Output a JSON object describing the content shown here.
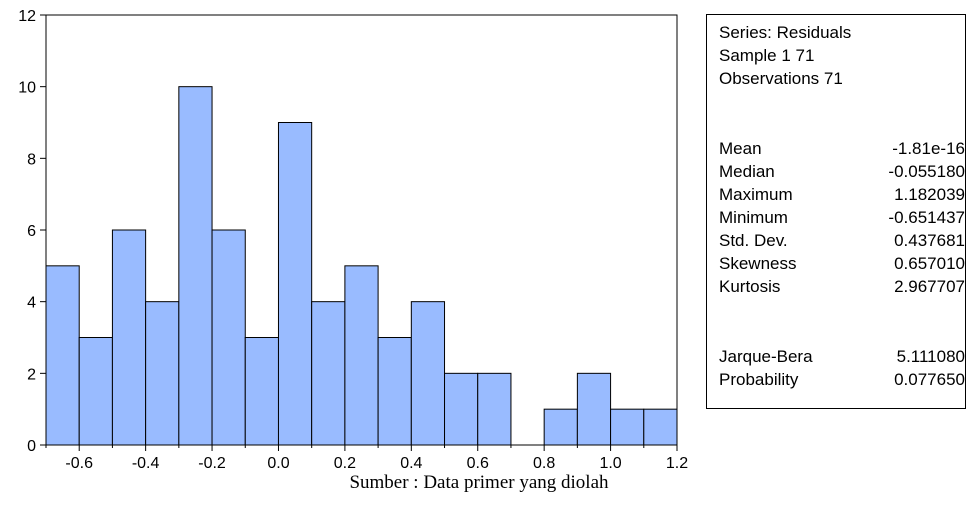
{
  "chart_data": {
    "type": "bar",
    "bin_edges": [
      -0.7,
      -0.6,
      -0.5,
      -0.4,
      -0.3,
      -0.2,
      -0.1,
      0.0,
      0.1,
      0.2,
      0.3,
      0.4,
      0.5,
      0.6,
      0.7,
      0.8,
      0.9,
      1.0,
      1.1,
      1.2
    ],
    "values": [
      5,
      3,
      6,
      4,
      10,
      6,
      3,
      9,
      4,
      5,
      3,
      4,
      2,
      2,
      0,
      1,
      2,
      1,
      1
    ],
    "xlim": [
      -0.7,
      1.2
    ],
    "ylim": [
      0,
      12
    ],
    "x_ticks": [
      -0.6,
      -0.4,
      -0.2,
      0.0,
      0.2,
      0.4,
      0.6,
      0.8,
      1.0,
      1.2
    ],
    "x_tick_labels": [
      "-0.6",
      "-0.4",
      "-0.2",
      "0.0",
      "0.2",
      "0.4",
      "0.6",
      "0.8",
      "1.0",
      "1.2"
    ],
    "y_ticks": [
      0,
      2,
      4,
      6,
      8,
      10,
      12
    ],
    "y_tick_labels": [
      "0",
      "2",
      "4",
      "6",
      "8",
      "10",
      "12"
    ],
    "bar_color": "#99bbff",
    "edge_color": "#000000",
    "grid": false,
    "xlabel": "",
    "ylabel": "",
    "title": ""
  },
  "stats": {
    "series_line": "Series: Residuals",
    "sample_line": "Sample 1 71",
    "observations_line": "Observations 71",
    "rows": [
      {
        "label": "Mean",
        "value": "-1.81e-16"
      },
      {
        "label": "Median",
        "value": "-0.055180"
      },
      {
        "label": "Maximum",
        "value": "1.182039"
      },
      {
        "label": "Minimum",
        "value": "-0.651437"
      },
      {
        "label": "Std. Dev.",
        "value": "0.437681"
      },
      {
        "label": "Skewness",
        "value": "0.657010"
      },
      {
        "label": "Kurtosis",
        "value": "2.967707"
      }
    ],
    "test_rows": [
      {
        "label": "Jarque-Bera",
        "value": "5.111080"
      },
      {
        "label": "Probability",
        "value": "0.077650"
      }
    ]
  },
  "source_caption": "Sumber : Data primer yang diolah"
}
